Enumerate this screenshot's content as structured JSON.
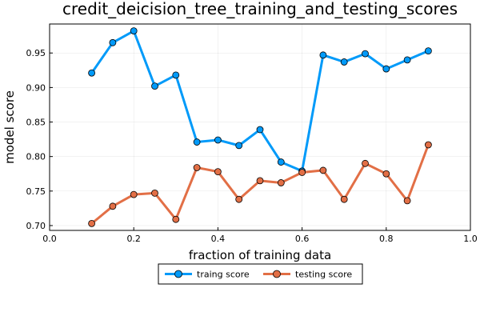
{
  "chart_data": {
    "type": "line",
    "title": "credit_deicision_tree_training_and_testing_scores",
    "xlabel": "fraction of training data",
    "ylabel": "model score",
    "xlim": [
      0.0,
      1.0
    ],
    "ylim": [
      0.693,
      0.992
    ],
    "xticks": [
      0.0,
      0.2,
      0.4,
      0.6,
      0.8,
      1.0
    ],
    "xtick_labels": [
      "0.0",
      "0.2",
      "0.4",
      "0.6",
      "0.8",
      "1.0"
    ],
    "yticks": [
      0.7,
      0.75,
      0.8,
      0.85,
      0.9,
      0.95
    ],
    "ytick_labels": [
      "0.70",
      "0.75",
      "0.80",
      "0.85",
      "0.90",
      "0.95"
    ],
    "grid": true,
    "legend_position": "bottom-center, outside plot",
    "x": [
      0.1,
      0.15,
      0.2,
      0.25,
      0.3,
      0.35,
      0.4,
      0.45,
      0.5,
      0.55,
      0.6,
      0.65,
      0.7,
      0.75,
      0.8,
      0.85,
      0.9
    ],
    "series": [
      {
        "name": "traing score",
        "color": "#009af9",
        "values": [
          0.921,
          0.965,
          0.982,
          0.902,
          0.918,
          0.821,
          0.824,
          0.816,
          0.839,
          0.792,
          0.779,
          0.947,
          0.937,
          0.949,
          0.927,
          0.94,
          0.953
        ]
      },
      {
        "name": "testing score",
        "color": "#e26f46",
        "values": [
          0.703,
          0.728,
          0.745,
          0.747,
          0.709,
          0.784,
          0.778,
          0.738,
          0.765,
          0.762,
          0.777,
          0.78,
          0.738,
          0.79,
          0.775,
          0.736,
          0.817
        ]
      }
    ]
  }
}
